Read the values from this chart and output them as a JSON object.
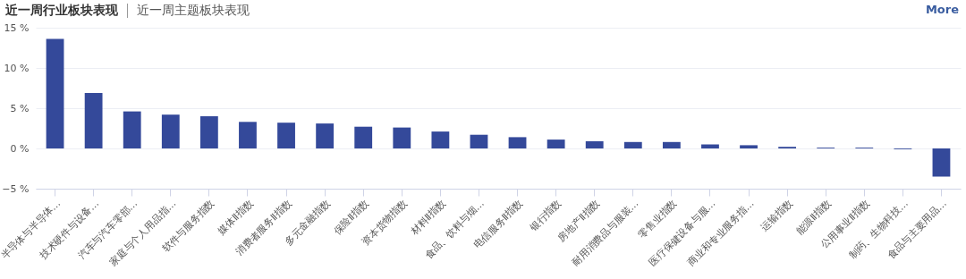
{
  "chart_data": {
    "type": "bar",
    "title": "近一周行业板块表现",
    "subtitle": "近一周主题板块表现",
    "annotations": [
      "More"
    ],
    "categories": [
      "半导体与半导体…",
      "技术硬件与设备…",
      "汽车与汽车零部…",
      "家庭与个人用品指…",
      "软件与服务指数",
      "媒体Ⅱ指数",
      "消费者服务Ⅱ指数",
      "多元金融指数",
      "保险Ⅱ指数",
      "资本货物指数",
      "材料Ⅱ指数",
      "食品、饮料与烟…",
      "电信服务Ⅱ指数",
      "银行指数",
      "房地产Ⅱ指数",
      "耐用消费品与服装…",
      "零售业指数",
      "医疗保健设备与服…",
      "商业和专业服务指…",
      "运输指数",
      "能源Ⅱ指数",
      "公用事业Ⅱ指数",
      "制药、生物科技…",
      "食品与主要用品…"
    ],
    "values": [
      13.6,
      6.9,
      4.6,
      4.2,
      4.0,
      3.3,
      3.2,
      3.1,
      2.7,
      2.6,
      2.1,
      1.7,
      1.4,
      1.1,
      0.9,
      0.8,
      0.8,
      0.5,
      0.4,
      0.2,
      0.1,
      0.1,
      -0.1,
      -3.5
    ],
    "color": "#34499a",
    "ylim": [
      -5,
      15
    ],
    "yticks": [
      {
        "value": -5,
        "label": "−5 %"
      },
      {
        "value": 0,
        "label": "0 %"
      },
      {
        "value": 5,
        "label": "5 %"
      },
      {
        "value": 10,
        "label": "10 %"
      },
      {
        "value": 15,
        "label": "15 %"
      }
    ],
    "grid": "y"
  }
}
